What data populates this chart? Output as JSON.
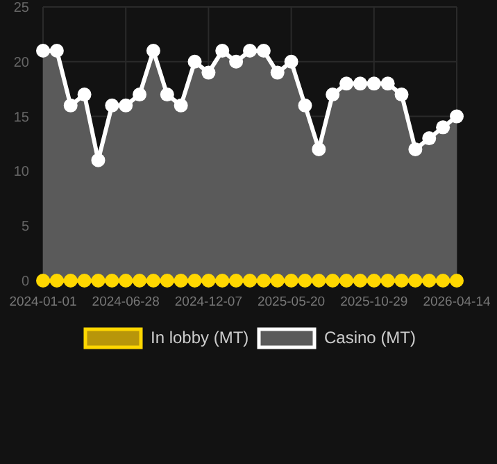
{
  "chart_data": {
    "type": "line",
    "categories": [
      "2024-01-01",
      null,
      null,
      null,
      null,
      null,
      "2024-06-28",
      null,
      null,
      null,
      null,
      null,
      "2024-12-07",
      null,
      null,
      null,
      null,
      null,
      "2025-05-20",
      null,
      null,
      null,
      null,
      null,
      "2025-10-29",
      null,
      null,
      null,
      null,
      null,
      "2026-04-14"
    ],
    "series": [
      {
        "name": "In lobby (MT)",
        "color": "#ffd700",
        "values": [
          0,
          0,
          0,
          0,
          0,
          0,
          0,
          0,
          0,
          0,
          0,
          0,
          0,
          0,
          0,
          0,
          0,
          0,
          0,
          0,
          0,
          0,
          0,
          0,
          0,
          0,
          0,
          0,
          0,
          0,
          0
        ]
      },
      {
        "name": "Casino (MT)",
        "type": "area",
        "color": "#ffffff",
        "values": [
          21,
          21,
          16,
          17,
          11,
          16,
          16,
          17,
          21,
          17,
          16,
          20,
          19,
          21,
          20,
          21,
          21,
          19,
          20,
          16,
          12,
          17,
          18,
          18,
          18,
          18,
          17,
          12,
          13,
          14,
          15
        ]
      }
    ],
    "ylim": [
      0,
      25
    ],
    "yticks": [
      0,
      5,
      10,
      15,
      20,
      25
    ],
    "grid": true,
    "legend": "bottom",
    "marker": "circle"
  }
}
